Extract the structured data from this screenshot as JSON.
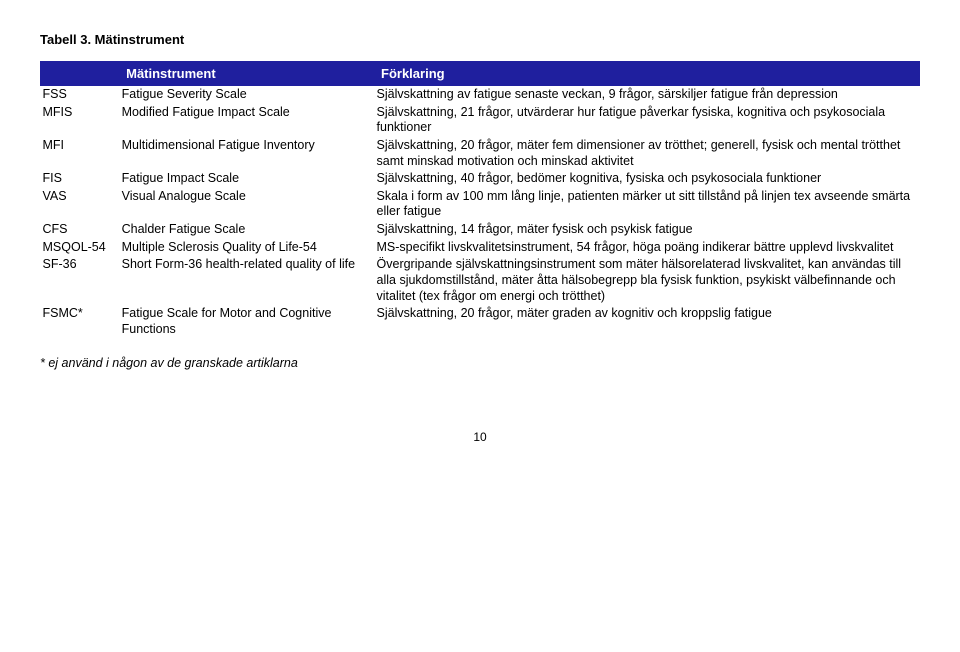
{
  "caption": "Tabell 3. Mätinstrument",
  "header": {
    "col0": "",
    "col1": "Mätinstrument",
    "col2": "Förklaring"
  },
  "rows": [
    {
      "abbr": "FSS",
      "name": "Fatigue Severity Scale",
      "desc": "Självskattning av fatigue senaste veckan, 9 frågor, särskiljer fatigue från depression"
    },
    {
      "abbr": "MFIS",
      "name": "Modified Fatigue Impact Scale",
      "desc": "Självskattning, 21 frågor, utvärderar hur fatigue påverkar fysiska, kognitiva och psykosociala funktioner"
    },
    {
      "abbr": "MFI",
      "name": "Multidimensional Fatigue Inventory",
      "desc": "Självskattning, 20 frågor, mäter fem dimensioner av trötthet; generell, fysisk och mental trötthet samt minskad motivation och minskad aktivitet"
    },
    {
      "abbr": "FIS",
      "name": "Fatigue Impact Scale",
      "desc": "Självskattning, 40 frågor, bedömer kognitiva, fysiska och psykosociala funktioner"
    },
    {
      "abbr": "VAS",
      "name": "Visual Analogue Scale",
      "desc": "Skala i form av 100 mm lång linje, patienten märker ut sitt tillstånd på linjen tex avseende smärta eller fatigue"
    },
    {
      "abbr": "CFS",
      "name": "Chalder Fatigue Scale",
      "desc": "Självskattning, 14 frågor, mäter fysisk och psykisk fatigue"
    },
    {
      "abbr": "MSQOL-54",
      "name": "Multiple Sclerosis Quality of Life-54",
      "desc": "MS-specifikt livskvalitetsinstrument, 54 frågor, höga poäng indikerar bättre upplevd livskvalitet"
    },
    {
      "abbr": "SF-36",
      "name": "Short Form-36 health-related quality of life",
      "desc": "Övergripande självskattningsinstrument som mäter hälsorelaterad livskvalitet, kan användas till alla sjukdomstillstånd, mäter åtta hälsobegrepp bla fysisk funktion, psykiskt välbefinnande och vitalitet (tex frågor om energi och trötthet)"
    },
    {
      "abbr": "FSMC*",
      "name": "Fatigue Scale for Motor and Cognitive Functions",
      "desc": "Självskattning, 20 frågor, mäter graden av kognitiv och kroppslig fatigue"
    }
  ],
  "footnote": "* ej använd i någon av de granskade artiklarna",
  "page_number": "10",
  "style": {
    "header_bg": "#1f1f9e",
    "header_fg": "#ffffff",
    "body_bg": "#ffffff",
    "font_family": "Arial",
    "caption_fontsize_pt": 10,
    "body_fontsize_pt": 9.5,
    "col_widths_pct": [
      9,
      29,
      62
    ]
  }
}
